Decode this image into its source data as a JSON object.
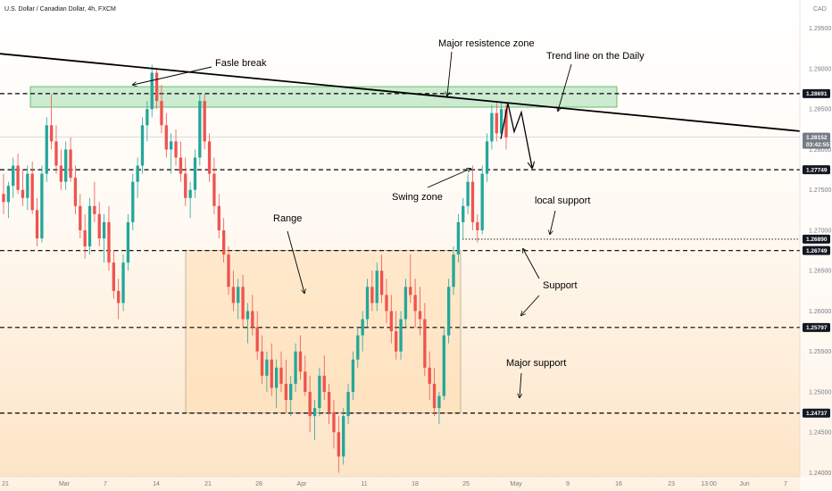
{
  "header": {
    "symbol_title": "U.S. Dollar / Canadian Dollar, 4h, FXCM",
    "currency": "CAD"
  },
  "colors": {
    "up": "#26a69a",
    "down": "#ef5350",
    "tag": "#131722",
    "current_tag": "#787b86",
    "zone_fill": "#b7e3bf",
    "zone_stroke": "#4caf50",
    "range_fill": "#ffdcb0",
    "bg_top": "#ffffff",
    "bg_bottom": "#fde3c3"
  },
  "chart_data": {
    "type": "candlestick",
    "title": "U.S. Dollar / Canadian Dollar, 4h, FXCM",
    "ylim": [
      1.2395,
      1.2985
    ],
    "y_ticks": [
      "1.29500",
      "1.29000",
      "1.28500",
      "1.28000",
      "1.27500",
      "1.27000",
      "1.26500",
      "1.26000",
      "1.25500",
      "1.25000",
      "1.24500",
      "1.24000"
    ],
    "x_ticks": [
      "21",
      "Mar",
      "7",
      "14",
      "21",
      "28",
      "Apr",
      "11",
      "18",
      "25",
      "May",
      "9",
      "16",
      "23",
      "13:00",
      "Jun",
      "7"
    ],
    "price_levels": [
      {
        "label": "1.28691",
        "value": 1.28691,
        "style": "dashed"
      },
      {
        "label": "1.27749",
        "value": 1.27749,
        "style": "dashed"
      },
      {
        "label": "1.26890",
        "value": 1.2689,
        "style": "dotted"
      },
      {
        "label": "1.26749",
        "value": 1.26749,
        "style": "dashed"
      },
      {
        "label": "1.25797",
        "value": 1.25797,
        "style": "dashed"
      },
      {
        "label": "1.24737",
        "value": 1.24737,
        "style": "dashed"
      }
    ],
    "current_price": {
      "label": "1.28152",
      "countdown": "03:42:55",
      "value": 1.28152
    },
    "zones": [
      {
        "name": "major-resistance-zone",
        "y_top": 1.28778,
        "y_bottom": 1.28524
      },
      {
        "name": "range-box",
        "y_top": 1.26749,
        "y_bottom": 1.24737
      }
    ],
    "trend_line": {
      "start": 1.29185,
      "end": 1.28227
    },
    "annotations": [
      "Fasle break",
      "Major resistence zone",
      "Trend line on the Daily",
      "Swing zone",
      "local support",
      "Range",
      "Support",
      "Major support"
    ],
    "candles": [
      [
        1.2745,
        1.277,
        1.272,
        1.2735
      ],
      [
        1.2735,
        1.276,
        1.2715,
        1.2755
      ],
      [
        1.2755,
        1.279,
        1.274,
        1.278
      ],
      [
        1.278,
        1.2795,
        1.2745,
        1.275
      ],
      [
        1.275,
        1.2775,
        1.273,
        1.274
      ],
      [
        1.274,
        1.278,
        1.2725,
        1.277
      ],
      [
        1.277,
        1.2785,
        1.272,
        1.2725
      ],
      [
        1.2725,
        1.274,
        1.268,
        1.269
      ],
      [
        1.269,
        1.278,
        1.2685,
        1.277
      ],
      [
        1.277,
        1.284,
        1.276,
        1.283
      ],
      [
        1.283,
        1.2868,
        1.28,
        1.281
      ],
      [
        1.281,
        1.283,
        1.277,
        1.278
      ],
      [
        1.278,
        1.28,
        1.275,
        1.276
      ],
      [
        1.276,
        1.281,
        1.275,
        1.28
      ],
      [
        1.28,
        1.2815,
        1.276,
        1.2765
      ],
      [
        1.2765,
        1.278,
        1.272,
        1.273
      ],
      [
        1.273,
        1.2745,
        1.269,
        1.27
      ],
      [
        1.27,
        1.272,
        1.2665,
        1.268
      ],
      [
        1.268,
        1.274,
        1.267,
        1.273
      ],
      [
        1.273,
        1.276,
        1.271,
        1.272
      ],
      [
        1.272,
        1.2735,
        1.268,
        1.269
      ],
      [
        1.269,
        1.272,
        1.266,
        1.271
      ],
      [
        1.271,
        1.273,
        1.265,
        1.266
      ],
      [
        1.266,
        1.2675,
        1.2615,
        1.2625
      ],
      [
        1.2625,
        1.264,
        1.259,
        1.261
      ],
      [
        1.261,
        1.267,
        1.26,
        1.266
      ],
      [
        1.266,
        1.272,
        1.265,
        1.271
      ],
      [
        1.271,
        1.277,
        1.27,
        1.276
      ],
      [
        1.276,
        1.279,
        1.274,
        1.278
      ],
      [
        1.278,
        1.284,
        1.277,
        1.283
      ],
      [
        1.283,
        1.286,
        1.281,
        1.285
      ],
      [
        1.285,
        1.2905,
        1.284,
        1.2895
      ],
      [
        1.2895,
        1.29,
        1.285,
        1.286
      ],
      [
        1.286,
        1.288,
        1.282,
        1.283
      ],
      [
        1.283,
        1.2845,
        1.279,
        1.28
      ],
      [
        1.28,
        1.282,
        1.277,
        1.281
      ],
      [
        1.281,
        1.2825,
        1.278,
        1.279
      ],
      [
        1.279,
        1.281,
        1.276,
        1.277
      ],
      [
        1.277,
        1.279,
        1.273,
        1.274
      ],
      [
        1.274,
        1.276,
        1.2715,
        1.275
      ],
      [
        1.275,
        1.28,
        1.274,
        1.279
      ],
      [
        1.279,
        1.287,
        1.278,
        1.286
      ],
      [
        1.286,
        1.2868,
        1.28,
        1.281
      ],
      [
        1.281,
        1.282,
        1.276,
        1.277
      ],
      [
        1.277,
        1.279,
        1.272,
        1.273
      ],
      [
        1.273,
        1.2745,
        1.269,
        1.27
      ],
      [
        1.27,
        1.2715,
        1.266,
        1.267
      ],
      [
        1.267,
        1.268,
        1.262,
        1.263
      ],
      [
        1.263,
        1.265,
        1.26,
        1.261
      ],
      [
        1.261,
        1.264,
        1.259,
        1.263
      ],
      [
        1.263,
        1.2645,
        1.258,
        1.259
      ],
      [
        1.259,
        1.261,
        1.256,
        1.26
      ],
      [
        1.26,
        1.262,
        1.257,
        1.258
      ],
      [
        1.258,
        1.26,
        1.254,
        1.255
      ],
      [
        1.255,
        1.257,
        1.251,
        1.252
      ],
      [
        1.252,
        1.255,
        1.25,
        1.254
      ],
      [
        1.254,
        1.256,
        1.2495,
        1.2505
      ],
      [
        1.2505,
        1.254,
        1.248,
        1.253
      ],
      [
        1.253,
        1.255,
        1.25,
        1.251
      ],
      [
        1.251,
        1.254,
        1.2475,
        1.249
      ],
      [
        1.249,
        1.252,
        1.247,
        1.251
      ],
      [
        1.251,
        1.256,
        1.25,
        1.255
      ],
      [
        1.255,
        1.257,
        1.2515,
        1.2525
      ],
      [
        1.2525,
        1.2545,
        1.2495,
        1.25
      ],
      [
        1.25,
        1.252,
        1.245,
        1.247
      ],
      [
        1.247,
        1.249,
        1.244,
        1.248
      ],
      [
        1.248,
        1.253,
        1.247,
        1.252
      ],
      [
        1.252,
        1.2545,
        1.249,
        1.25
      ],
      [
        1.25,
        1.251,
        1.246,
        1.2475
      ],
      [
        1.2475,
        1.249,
        1.243,
        1.245
      ],
      [
        1.245,
        1.247,
        1.24,
        1.242
      ],
      [
        1.242,
        1.248,
        1.241,
        1.247
      ],
      [
        1.247,
        1.251,
        1.246,
        1.25
      ],
      [
        1.25,
        1.255,
        1.249,
        1.254
      ],
      [
        1.254,
        1.258,
        1.253,
        1.257
      ],
      [
        1.257,
        1.26,
        1.255,
        1.259
      ],
      [
        1.259,
        1.264,
        1.258,
        1.263
      ],
      [
        1.263,
        1.265,
        1.26,
        1.261
      ],
      [
        1.261,
        1.266,
        1.26,
        1.265
      ],
      [
        1.265,
        1.267,
        1.261,
        1.262
      ],
      [
        1.262,
        1.264,
        1.2585,
        1.26
      ],
      [
        1.26,
        1.262,
        1.256,
        1.2575
      ],
      [
        1.2575,
        1.26,
        1.254,
        1.255
      ],
      [
        1.255,
        1.26,
        1.254,
        1.259
      ],
      [
        1.259,
        1.264,
        1.258,
        1.263
      ],
      [
        1.263,
        1.267,
        1.261,
        1.262
      ],
      [
        1.262,
        1.264,
        1.258,
        1.26
      ],
      [
        1.26,
        1.263,
        1.257,
        1.259
      ],
      [
        1.259,
        1.261,
        1.252,
        1.253
      ],
      [
        1.253,
        1.255,
        1.249,
        1.251
      ],
      [
        1.251,
        1.253,
        1.247,
        1.248
      ],
      [
        1.248,
        1.25,
        1.246,
        1.2495
      ],
      [
        1.2495,
        1.258,
        1.249,
        1.257
      ],
      [
        1.257,
        1.264,
        1.256,
        1.263
      ],
      [
        1.263,
        1.268,
        1.262,
        1.267
      ],
      [
        1.267,
        1.272,
        1.266,
        1.271
      ],
      [
        1.271,
        1.274,
        1.269,
        1.273
      ],
      [
        1.273,
        1.277,
        1.272,
        1.276
      ],
      [
        1.276,
        1.278,
        1.27,
        1.271
      ],
      [
        1.271,
        1.272,
        1.2685,
        1.27
      ],
      [
        1.27,
        1.278,
        1.2695,
        1.277
      ],
      [
        1.277,
        1.282,
        1.276,
        1.281
      ],
      [
        1.281,
        1.2855,
        1.28,
        1.2845
      ],
      [
        1.2845,
        1.286,
        1.281,
        1.282
      ],
      [
        1.282,
        1.286,
        1.2815,
        1.285
      ],
      [
        1.285,
        1.2858,
        1.28,
        1.2815
      ]
    ]
  }
}
